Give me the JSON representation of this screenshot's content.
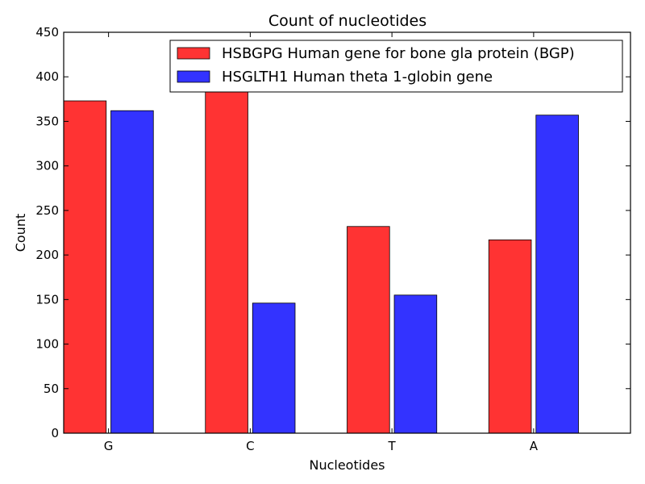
{
  "chart_data": {
    "type": "bar",
    "title": "Count of nucleotides",
    "xlabel": "Nucleotides",
    "ylabel": "Count",
    "categories": [
      "G",
      "C",
      "T",
      "A"
    ],
    "ylim": [
      0,
      450
    ],
    "yticks": [
      0,
      50,
      100,
      150,
      200,
      250,
      300,
      350,
      400,
      450
    ],
    "grid": false,
    "legend_position": "top-right",
    "series": [
      {
        "name": "HSBGPG Human gene for bone gla protein (BGP)",
        "color": "#ff3333",
        "values": [
          373,
          384,
          232,
          217
        ]
      },
      {
        "name": "HSGLTH1 Human theta 1-globin gene",
        "color": "#3333ff",
        "values": [
          362,
          146,
          155,
          357
        ]
      }
    ]
  }
}
